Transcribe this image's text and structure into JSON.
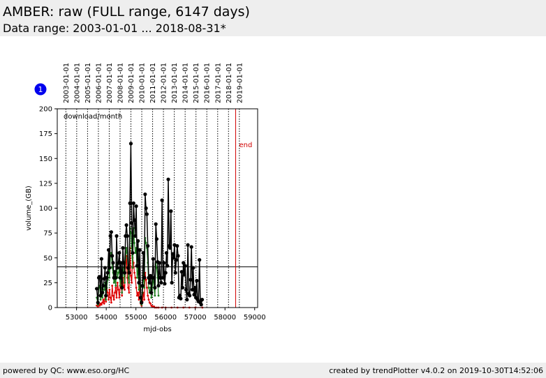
{
  "header": {
    "title": "AMBER: raw (FULL range, 6147 days)",
    "subtitle": "Data range: 2003-01-01 ... 2018-08-31*"
  },
  "footer": {
    "left": "powered by QC: www.eso.org/HC",
    "right": "created by trendPlotter v4.0.2 on 2019-10-30T14:52:06"
  },
  "chart_data": {
    "type": "line",
    "title": "",
    "xlabel": "mjd-obs",
    "ylabel": "volume_(GB)",
    "xlim": [
      52350,
      59100
    ],
    "ylim": [
      0,
      200
    ],
    "xticks": [
      53000,
      54000,
      55000,
      56000,
      57000,
      58000,
      59000
    ],
    "xtick_labels": [
      "53000",
      "54000",
      "55000",
      "56000",
      "57000",
      "58000",
      "59000"
    ],
    "yticks": [
      0,
      25,
      50,
      75,
      100,
      125,
      150,
      175,
      200
    ],
    "ytick_labels": [
      "0",
      "25",
      "50",
      "75",
      "100",
      "125",
      "150",
      "175",
      "200"
    ],
    "inner_label": "download/month",
    "badge": "1",
    "end_marker": {
      "x": 58360,
      "label": "end",
      "color": "#d00000"
    },
    "reference_line": {
      "y": 41
    },
    "year_markers": [
      {
        "label": "2003-01-01",
        "x": 52640
      },
      {
        "label": "2004-01-01",
        "x": 53005
      },
      {
        "label": "2005-01-01",
        "x": 53371
      },
      {
        "label": "2006-01-01",
        "x": 53736
      },
      {
        "label": "2007-01-01",
        "x": 54101
      },
      {
        "label": "2008-01-01",
        "x": 54466
      },
      {
        "label": "2009-01-01",
        "x": 54832
      },
      {
        "label": "2010-01-01",
        "x": 55197
      },
      {
        "label": "2011-01-01",
        "x": 55562
      },
      {
        "label": "2012-01-01",
        "x": 55927
      },
      {
        "label": "2013-01-01",
        "x": 56293
      },
      {
        "label": "2014-01-01",
        "x": 56658
      },
      {
        "label": "2015-01-01",
        "x": 57023
      },
      {
        "label": "2016-01-01",
        "x": 57388
      },
      {
        "label": "2017-01-01",
        "x": 57754
      },
      {
        "label": "2018-01-01",
        "x": 58119
      },
      {
        "label": "2019-01-01",
        "x": 58484
      }
    ],
    "series": [
      {
        "color": "#000000",
        "style": "line-markers",
        "points": [
          [
            53680,
            19
          ],
          [
            53720,
            5
          ],
          [
            53750,
            30
          ],
          [
            53780,
            31
          ],
          [
            53810,
            12
          ],
          [
            53840,
            49
          ],
          [
            53870,
            15
          ],
          [
            53900,
            22
          ],
          [
            53930,
            29
          ],
          [
            53960,
            40
          ],
          [
            53990,
            12
          ],
          [
            54020,
            30
          ],
          [
            54050,
            35
          ],
          [
            54080,
            58
          ],
          [
            54110,
            40
          ],
          [
            54140,
            72
          ],
          [
            54170,
            76
          ],
          [
            54200,
            52
          ],
          [
            54230,
            45
          ],
          [
            54260,
            30
          ],
          [
            54290,
            36
          ],
          [
            54320,
            30
          ],
          [
            54350,
            72
          ],
          [
            54380,
            40
          ],
          [
            54410,
            45
          ],
          [
            54440,
            55
          ],
          [
            54470,
            30
          ],
          [
            54500,
            45
          ],
          [
            54530,
            20
          ],
          [
            54560,
            60
          ],
          [
            54590,
            45
          ],
          [
            54620,
            35
          ],
          [
            54650,
            72
          ],
          [
            54680,
            83
          ],
          [
            54710,
            72
          ],
          [
            54740,
            40
          ],
          [
            54770,
            35
          ],
          [
            54800,
            105
          ],
          [
            54830,
            165
          ],
          [
            54860,
            85
          ],
          [
            54890,
            55
          ],
          [
            54920,
            105
          ],
          [
            54950,
            88
          ],
          [
            54980,
            72
          ],
          [
            55010,
            102
          ],
          [
            55040,
            42
          ],
          [
            55070,
            67
          ],
          [
            55100,
            25
          ],
          [
            55130,
            58
          ],
          [
            55160,
            10
          ],
          [
            55190,
            5
          ],
          [
            55220,
            22
          ],
          [
            55250,
            55
          ],
          [
            55280,
            30
          ],
          [
            55310,
            114
          ],
          [
            55340,
            100
          ],
          [
            55370,
            94
          ],
          [
            55400,
            62
          ],
          [
            55430,
            30
          ],
          [
            55460,
            25
          ],
          [
            55490,
            32
          ],
          [
            55520,
            15
          ],
          [
            55550,
            30
          ],
          [
            55580,
            49
          ],
          [
            55610,
            30
          ],
          [
            55640,
            20
          ],
          [
            55670,
            84
          ],
          [
            55700,
            69
          ],
          [
            55730,
            46
          ],
          [
            55760,
            22
          ],
          [
            55790,
            45
          ],
          [
            55820,
            30
          ],
          [
            55850,
            25
          ],
          [
            55880,
            108
          ],
          [
            55910,
            30
          ],
          [
            55940,
            45
          ],
          [
            55970,
            24
          ],
          [
            56000,
            35
          ],
          [
            56030,
            55
          ],
          [
            56060,
            42
          ],
          [
            56090,
            129
          ],
          [
            56120,
            62
          ],
          [
            56150,
            60
          ],
          [
            56180,
            97
          ],
          [
            56210,
            25
          ],
          [
            56240,
            54
          ],
          [
            56270,
            50
          ],
          [
            56300,
            63
          ],
          [
            56330,
            35
          ],
          [
            56360,
            48
          ],
          [
            56390,
            62
          ],
          [
            56420,
            52
          ],
          [
            56450,
            10
          ],
          [
            56480,
            12
          ],
          [
            56510,
            9
          ],
          [
            56540,
            36
          ],
          [
            56570,
            20
          ],
          [
            56600,
            45
          ],
          [
            56630,
            33
          ],
          [
            56660,
            42
          ],
          [
            56690,
            18
          ],
          [
            56720,
            8
          ],
          [
            56750,
            63
          ],
          [
            56780,
            14
          ],
          [
            56810,
            12
          ],
          [
            56840,
            28
          ],
          [
            56870,
            61
          ],
          [
            56900,
            18
          ],
          [
            56930,
            40
          ],
          [
            56960,
            13
          ],
          [
            56990,
            20
          ],
          [
            57020,
            10
          ],
          [
            57050,
            27
          ],
          [
            57080,
            8
          ],
          [
            57110,
            6
          ],
          [
            57140,
            48
          ],
          [
            57170,
            5
          ],
          [
            57200,
            3
          ],
          [
            57230,
            8
          ]
        ]
      },
      {
        "color": "#1a7a1a",
        "style": "line-dots",
        "points": [
          [
            53680,
            10
          ],
          [
            53720,
            3
          ],
          [
            53750,
            20
          ],
          [
            53780,
            22
          ],
          [
            53810,
            8
          ],
          [
            53840,
            20
          ],
          [
            53870,
            10
          ],
          [
            53900,
            15
          ],
          [
            53930,
            18
          ],
          [
            53960,
            25
          ],
          [
            53990,
            8
          ],
          [
            54020,
            20
          ],
          [
            54050,
            28
          ],
          [
            54080,
            45
          ],
          [
            54110,
            30
          ],
          [
            54140,
            52
          ],
          [
            54170,
            55
          ],
          [
            54200,
            40
          ],
          [
            54230,
            35
          ],
          [
            54260,
            25
          ],
          [
            54290,
            28
          ],
          [
            54320,
            22
          ],
          [
            54350,
            45
          ],
          [
            54380,
            30
          ],
          [
            54410,
            35
          ],
          [
            54440,
            40
          ],
          [
            54470,
            22
          ],
          [
            54500,
            35
          ],
          [
            54530,
            15
          ],
          [
            54560,
            40
          ],
          [
            54590,
            35
          ],
          [
            54620,
            25
          ],
          [
            54650,
            50
          ],
          [
            54680,
            60
          ],
          [
            54710,
            55
          ],
          [
            54740,
            30
          ],
          [
            54770,
            25
          ],
          [
            54800,
            80
          ],
          [
            54830,
            75
          ],
          [
            54860,
            60
          ],
          [
            54890,
            40
          ],
          [
            54920,
            80
          ],
          [
            54950,
            65
          ],
          [
            54980,
            55
          ],
          [
            55010,
            60
          ],
          [
            55040,
            30
          ],
          [
            55070,
            40
          ],
          [
            55100,
            18
          ],
          [
            55130,
            30
          ],
          [
            55160,
            6
          ],
          [
            55190,
            3
          ],
          [
            55220,
            15
          ],
          [
            55250,
            35
          ],
          [
            55280,
            20
          ],
          [
            55310,
            70
          ],
          [
            55340,
            65
          ],
          [
            55370,
            60
          ],
          [
            55400,
            45
          ],
          [
            55430,
            20
          ],
          [
            55460,
            15
          ],
          [
            55490,
            20
          ],
          [
            55520,
            10
          ],
          [
            55550,
            20
          ],
          [
            55580,
            30
          ],
          [
            55610,
            20
          ],
          [
            55640,
            12
          ],
          [
            55670,
            45
          ],
          [
            55700,
            40
          ],
          [
            55730,
            30
          ],
          [
            55760,
            12
          ]
        ]
      },
      {
        "color": "#dd0000",
        "style": "line-dots",
        "points": [
          [
            53680,
            2
          ],
          [
            53720,
            1
          ],
          [
            53750,
            3
          ],
          [
            53780,
            2
          ],
          [
            53810,
            4
          ],
          [
            53840,
            3
          ],
          [
            53870,
            5
          ],
          [
            53900,
            8
          ],
          [
            53930,
            4
          ],
          [
            53960,
            12
          ],
          [
            53990,
            6
          ],
          [
            54020,
            20
          ],
          [
            54050,
            15
          ],
          [
            54080,
            8
          ],
          [
            54110,
            18
          ],
          [
            54140,
            10
          ],
          [
            54170,
            5
          ],
          [
            54200,
            22
          ],
          [
            54230,
            12
          ],
          [
            54260,
            8
          ],
          [
            54290,
            15
          ],
          [
            54320,
            20
          ],
          [
            54350,
            10
          ],
          [
            54380,
            25
          ],
          [
            54410,
            18
          ],
          [
            54440,
            10
          ],
          [
            54470,
            22
          ],
          [
            54500,
            28
          ],
          [
            54530,
            12
          ],
          [
            54560,
            30
          ],
          [
            54590,
            22
          ],
          [
            54620,
            18
          ],
          [
            54650,
            40
          ],
          [
            54680,
            52
          ],
          [
            54710,
            30
          ],
          [
            54740,
            20
          ],
          [
            54770,
            15
          ],
          [
            54800,
            60
          ],
          [
            54830,
            32
          ],
          [
            54860,
            25
          ],
          [
            54890,
            50
          ],
          [
            54920,
            45
          ],
          [
            54950,
            35
          ],
          [
            54980,
            30
          ],
          [
            55010,
            20
          ],
          [
            55040,
            12
          ],
          [
            55070,
            15
          ],
          [
            55100,
            8
          ],
          [
            55130,
            25
          ],
          [
            55160,
            4
          ],
          [
            55190,
            2
          ],
          [
            55220,
            6
          ],
          [
            55250,
            15
          ],
          [
            55280,
            8
          ],
          [
            55310,
            35
          ],
          [
            55340,
            28
          ],
          [
            55370,
            20
          ],
          [
            55400,
            12
          ],
          [
            55430,
            8
          ],
          [
            55460,
            5
          ],
          [
            55490,
            4
          ],
          [
            55520,
            2
          ],
          [
            55550,
            1
          ],
          [
            55580,
            1
          ],
          [
            55610,
            1
          ],
          [
            55640,
            0
          ],
          [
            55700,
            0
          ],
          [
            55760,
            0
          ],
          [
            55880,
            0
          ],
          [
            56000,
            0
          ],
          [
            56200,
            0
          ],
          [
            56400,
            0
          ],
          [
            56600,
            0
          ],
          [
            56800,
            0
          ],
          [
            57000,
            0
          ],
          [
            57240,
            0
          ]
        ]
      }
    ]
  }
}
